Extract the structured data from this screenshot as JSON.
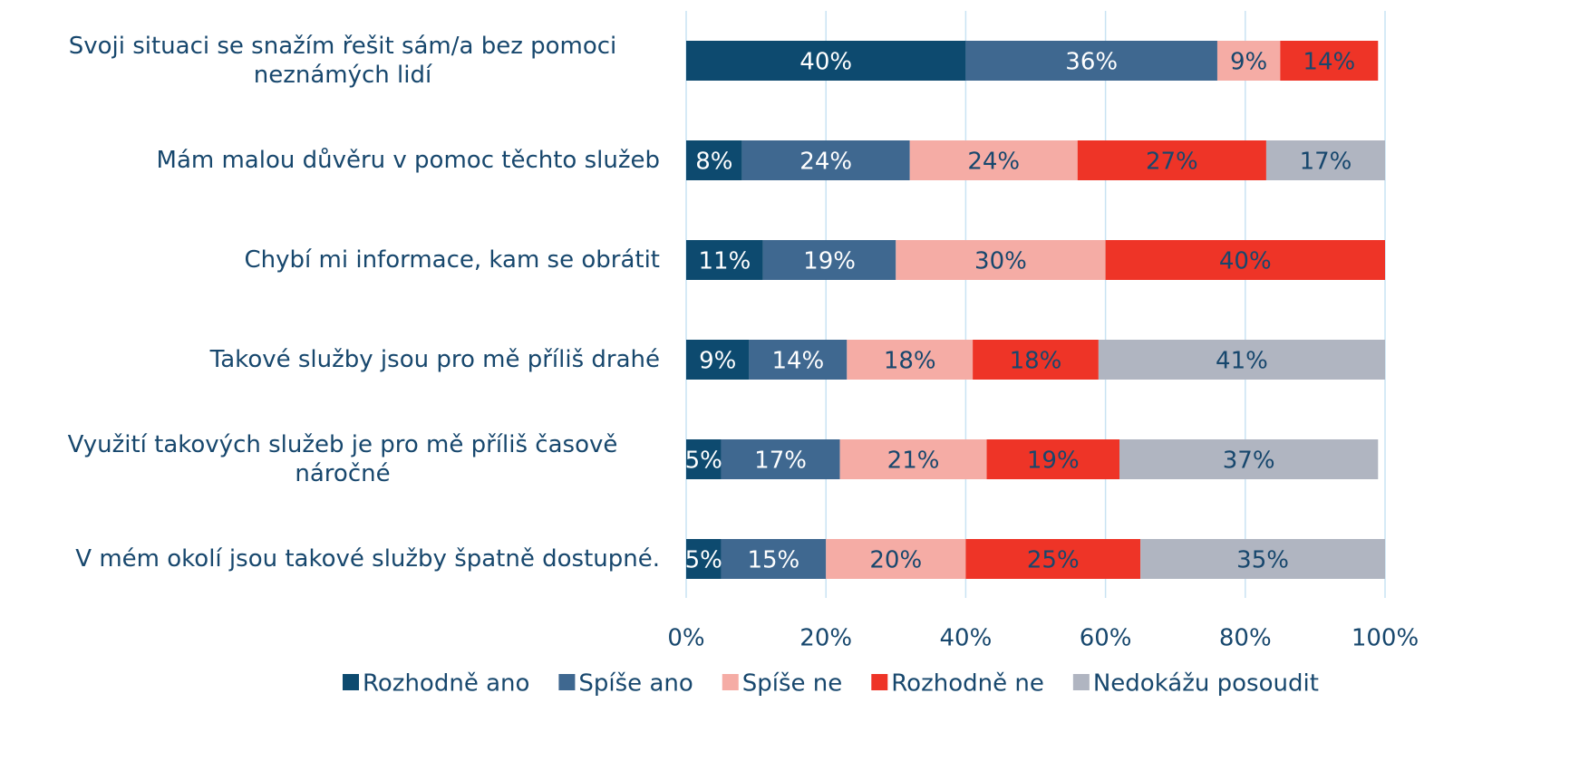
{
  "chart_data": {
    "type": "stacked-bar-horizontal",
    "categories": [
      "Svoji situaci se snažím řešit sám/a bez pomoci neznámých lidí",
      "Mám malou důvěru v pomoc těchto služeb",
      "Chybí mi informace, kam se obrátit",
      "Takové služby jsou pro mě příliš drahé",
      "Využití takových služeb je pro mě příliš časově náročné",
      "V mém okolí jsou takové služby špatně dostupné."
    ],
    "series": [
      {
        "name": "Rozhodně ano",
        "color": "#0d4a6f",
        "values": [
          40,
          8,
          11,
          9,
          5,
          5
        ],
        "value_labels": [
          "40%",
          "8%",
          "11%",
          "9%",
          "5%",
          "5%"
        ]
      },
      {
        "name": "Spíše ano",
        "color": "#3f6890",
        "values": [
          36,
          24,
          19,
          14,
          17,
          15
        ],
        "value_labels": [
          "36%",
          "24%",
          "19%",
          "14%",
          "17%",
          "15%"
        ]
      },
      {
        "name": "Spíše ne",
        "color": "#f5aca5",
        "values": [
          9,
          24,
          30,
          18,
          21,
          20
        ],
        "value_labels": [
          "9%",
          "24%",
          "30%",
          "18%",
          "21%",
          "20%"
        ]
      },
      {
        "name": "Rozhodně ne",
        "color": "#ee3427",
        "values": [
          14,
          27,
          40,
          18,
          19,
          25
        ],
        "value_labels": [
          "14%",
          "27%",
          "40%",
          "18%",
          "19%",
          "25%"
        ]
      },
      {
        "name": "Nedokážu posoudit",
        "color": "#b0b5c1",
        "values": [
          null,
          17,
          null,
          41,
          37,
          35
        ],
        "value_labels": [
          null,
          "17%",
          null,
          "41%",
          "37%",
          "35%"
        ]
      }
    ],
    "xlim": [
      0,
      100
    ],
    "xticks": [
      {
        "value": 0,
        "label": "0%"
      },
      {
        "value": 20,
        "label": "20%"
      },
      {
        "value": 40,
        "label": "40%"
      },
      {
        "value": 60,
        "label": "60%"
      },
      {
        "value": 80,
        "label": "80%"
      },
      {
        "value": 100,
        "label": "100%"
      }
    ],
    "grid": true,
    "legend": "bottom"
  }
}
